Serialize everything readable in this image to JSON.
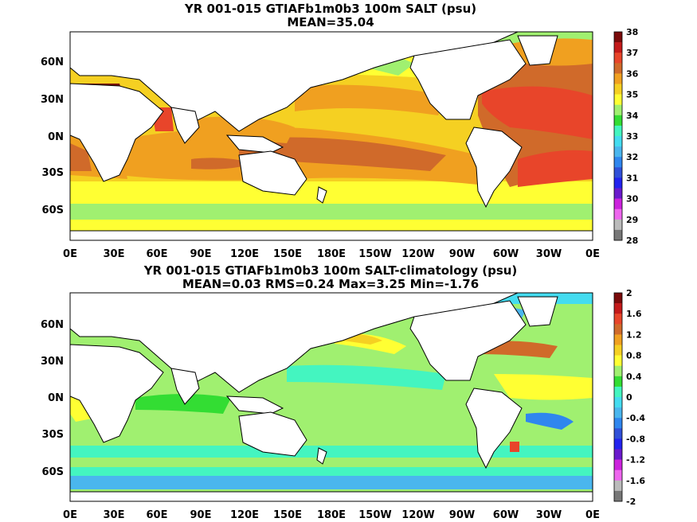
{
  "panels": [
    {
      "title": "YR 001-015 GTIAFb1m0b3 100m SALT (psu)",
      "subtitle": "MEAN=35.04",
      "lat_labels": [
        "60N",
        "30N",
        "0N",
        "30S",
        "60S"
      ],
      "lon_labels": [
        "0E",
        "30E",
        "60E",
        "90E",
        "120E",
        "150E",
        "180E",
        "150W",
        "120W",
        "90W",
        "60W",
        "30W",
        "0E"
      ],
      "colorbar": {
        "labels": [
          "38",
          "37",
          "36",
          "35",
          "34",
          "33",
          "32",
          "31",
          "30",
          "29",
          "28"
        ],
        "colors": [
          "#7a0b0b",
          "#c41a1a",
          "#e8452a",
          "#d06a2a",
          "#f0a020",
          "#f5d022",
          "#ffff33",
          "#a0f070",
          "#33dd33",
          "#44f5c0",
          "#44dcf0",
          "#4ab6ee",
          "#2f86ee",
          "#3050d8",
          "#2222ee",
          "#6a1acc",
          "#cc22dd",
          "#ee66ee",
          "#bbbbbb",
          "#777777"
        ]
      }
    },
    {
      "title": "YR 001-015 GTIAFb1m0b3 100m SALT-climatology (psu)",
      "subtitle": "MEAN=0.03   RMS=0.24   Max=3.25   Min=-1.76",
      "lat_labels": [
        "60N",
        "30N",
        "0N",
        "30S",
        "60S"
      ],
      "lon_labels": [
        "0E",
        "30E",
        "60E",
        "90E",
        "120E",
        "150E",
        "180E",
        "150W",
        "120W",
        "90W",
        "60W",
        "30W",
        "0E"
      ],
      "colorbar": {
        "labels": [
          "2",
          "1.6",
          "1.2",
          "0.8",
          "0.4",
          "0",
          "-0.4",
          "-0.8",
          "-1.2",
          "-1.6",
          "-2"
        ],
        "colors": [
          "#7a0b0b",
          "#c41a1a",
          "#e8452a",
          "#d06a2a",
          "#f0a020",
          "#f5d022",
          "#ffff33",
          "#a0f070",
          "#33dd33",
          "#44f5c0",
          "#44dcf0",
          "#4ab6ee",
          "#2f86ee",
          "#3050d8",
          "#2222ee",
          "#6a1acc",
          "#cc22dd",
          "#ee66ee",
          "#bbbbbb",
          "#777777"
        ]
      }
    }
  ]
}
